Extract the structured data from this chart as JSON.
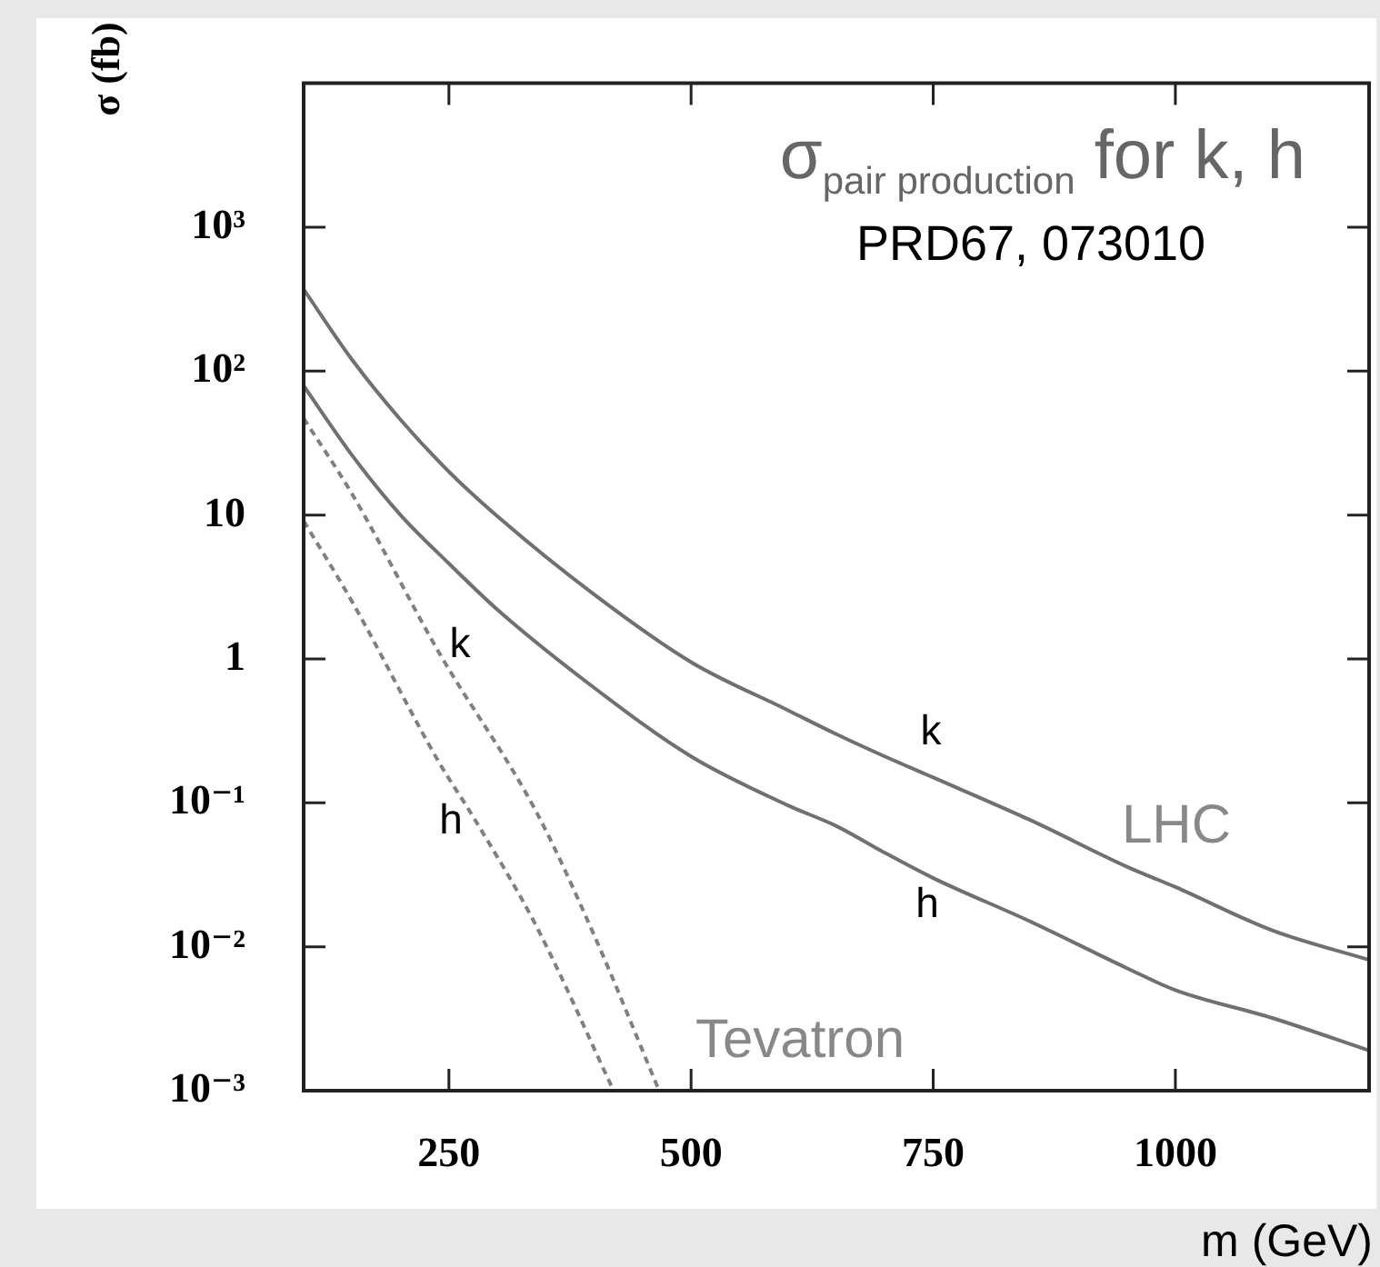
{
  "chart_data": {
    "type": "line",
    "title": "σ$_{pair production}$ for k, h",
    "subtitle": "PRD67, 073010",
    "xlabel": "m (GeV)",
    "ylabel": "σ (fb)",
    "log": "y",
    "xlim": [
      100,
      1200
    ],
    "xticks": [
      250,
      500,
      750,
      1000
    ],
    "ylim": [
      0.001,
      10000
    ],
    "yticks": [
      {
        "value": 0.001,
        "label": "10⁻³"
      },
      {
        "value": 0.01,
        "label": "10⁻²"
      },
      {
        "value": 0.1,
        "label": "10⁻¹"
      },
      1,
      10,
      {
        "value": 100,
        "label": "10²"
      },
      {
        "value": 1000,
        "label": "10³"
      },
      {
        "value": 10000,
        "label": null
      }
    ],
    "grid": false,
    "legend": false,
    "marker": "none",
    "series": [
      {
        "color": "#707070",
        "line_style": "solid",
        "x": [
          100,
          150,
          200,
          250,
          300,
          400,
          500,
          600,
          650,
          700,
          750,
          850,
          950,
          1000,
          1100,
          1200
        ],
        "values": [
          370,
          120,
          46,
          20,
          9.8,
          2.8,
          0.95,
          0.44,
          0.3,
          0.21,
          0.15,
          0.076,
          0.036,
          0.026,
          0.013,
          0.0081
        ]
      },
      {
        "color": "#707070",
        "line_style": "solid",
        "x": [
          100,
          150,
          200,
          250,
          300,
          400,
          500,
          600,
          650,
          700,
          750,
          850,
          950,
          1000,
          1100,
          1200
        ],
        "values": [
          79,
          26,
          10,
          4.6,
          2.2,
          0.63,
          0.21,
          0.096,
          0.069,
          0.045,
          0.03,
          0.015,
          0.0071,
          0.005,
          0.0032,
          0.0019
        ]
      },
      {
        "color": "#808080",
        "line_style": "dashed",
        "x": [
          100,
          150,
          240,
          340,
          400,
          467
        ],
        "values": [
          47,
          14,
          1.1,
          0.087,
          0.012,
          0.001
        ]
      },
      {
        "color": "#808080",
        "line_style": "dashed",
        "x": [
          100,
          150,
          240,
          275,
          340,
          420
        ],
        "values": [
          9.1,
          2.5,
          0.19,
          0.08,
          0.014,
          0.001
        ]
      }
    ],
    "annotations": [
      "k",
      "h",
      "k",
      "h",
      "LHC",
      "Tevatron"
    ]
  }
}
